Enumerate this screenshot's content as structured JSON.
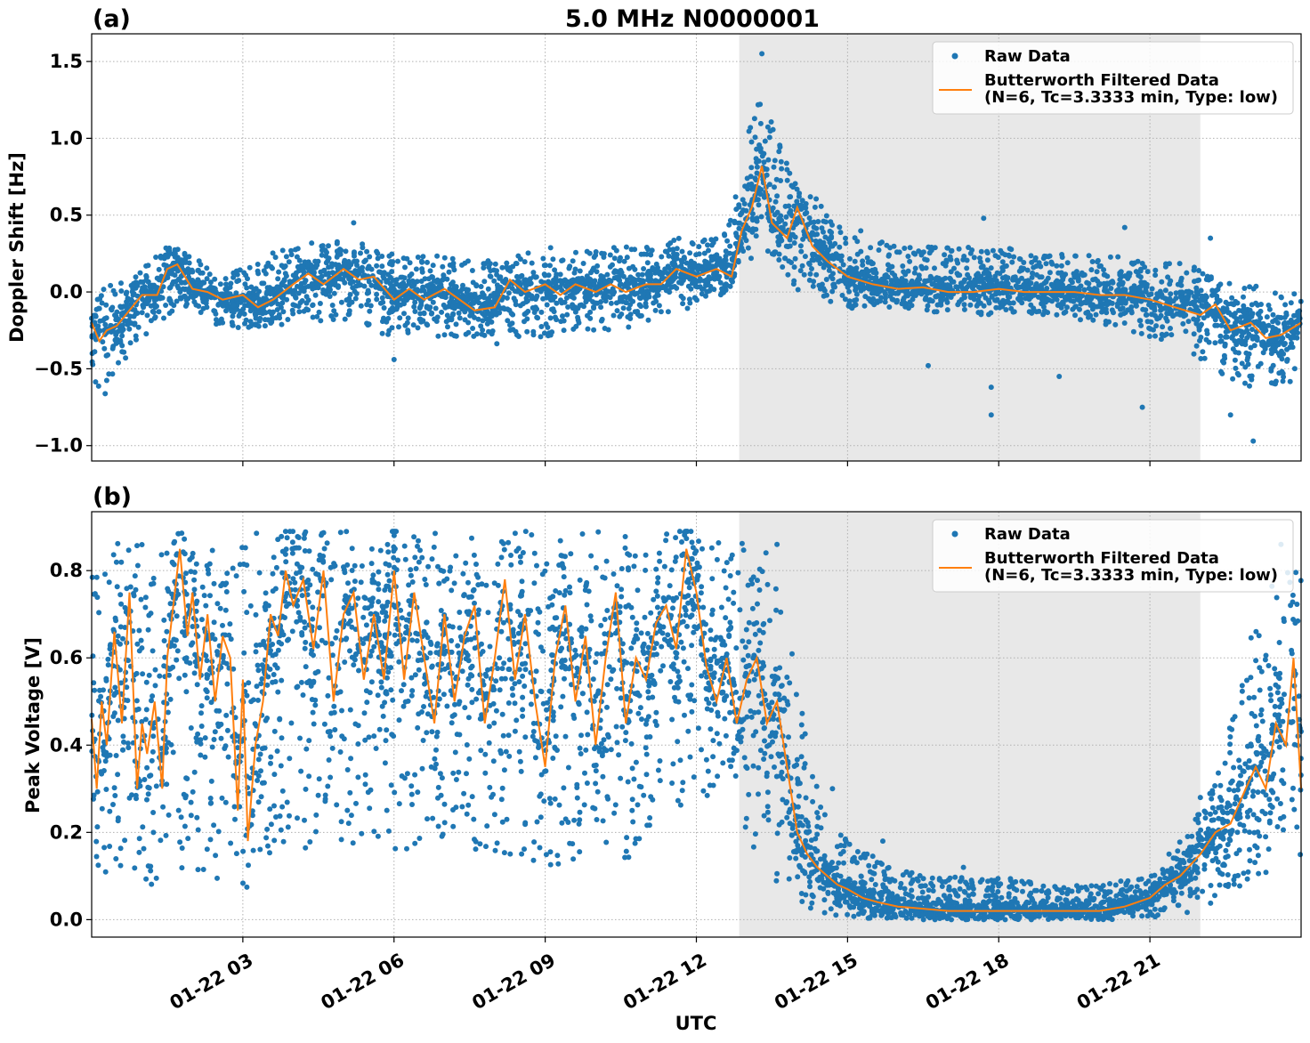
{
  "chart_data": [
    {
      "type": "scatter",
      "panel_label": "(a)",
      "title": "5.0 MHz N0000001",
      "ylabel": "Doppler Shift [Hz]",
      "xlabel": "",
      "x_unit": "UTC hour on 01-22",
      "xlim": [
        0,
        24
      ],
      "ylim": [
        -1.1,
        1.68
      ],
      "yticks": [
        1.5,
        1.0,
        0.5,
        0.0,
        -0.5,
        -1.0
      ],
      "ytick_labels": [
        "1.5",
        "1.0",
        "0.5",
        "0.0",
        "−0.5",
        "−1.0"
      ],
      "grid": true,
      "legend_position": "top-right",
      "shaded_interval": [
        12.85,
        22.0
      ],
      "series": [
        {
          "name": "Raw Data",
          "style": "points",
          "color": "#1f77b4",
          "envelope": {
            "x": [
              0,
              0.2,
              0.5,
              1,
              1.5,
              2,
              2.5,
              3,
              3.5,
              4,
              4.5,
              5,
              5.5,
              6,
              6.5,
              7,
              7.5,
              8,
              8.5,
              9,
              9.5,
              10,
              10.5,
              11,
              11.5,
              12,
              12.5,
              12.8,
              13,
              13.3,
              13.6,
              14,
              14.5,
              15,
              15.5,
              16,
              17,
              18,
              19,
              20,
              21,
              21.5,
              22,
              22.5,
              23,
              23.5,
              24
            ],
            "low": [
              -0.65,
              -0.75,
              -0.5,
              -0.3,
              -0.15,
              -0.1,
              -0.25,
              -0.25,
              -0.3,
              -0.15,
              -0.2,
              -0.2,
              -0.25,
              -0.3,
              -0.25,
              -0.3,
              -0.3,
              -0.35,
              -0.3,
              -0.3,
              -0.25,
              -0.25,
              -0.25,
              -0.2,
              -0.15,
              -0.1,
              -0.05,
              0.1,
              0.2,
              0.25,
              0.2,
              0.0,
              -0.05,
              -0.15,
              -0.1,
              -0.1,
              -0.15,
              -0.15,
              -0.15,
              -0.2,
              -0.3,
              -0.35,
              -0.45,
              -0.55,
              -0.65,
              -0.6,
              -0.6
            ],
            "high": [
              0.0,
              0.05,
              0.05,
              0.15,
              0.3,
              0.25,
              0.1,
              0.15,
              0.25,
              0.3,
              0.35,
              0.35,
              0.3,
              0.25,
              0.25,
              0.25,
              0.25,
              0.2,
              0.25,
              0.3,
              0.25,
              0.3,
              0.3,
              0.3,
              0.35,
              0.35,
              0.35,
              0.7,
              1.0,
              1.4,
              1.0,
              0.75,
              0.6,
              0.45,
              0.35,
              0.3,
              0.3,
              0.3,
              0.25,
              0.25,
              0.2,
              0.2,
              0.15,
              0.1,
              0.05,
              0.05,
              0.05
            ]
          },
          "outliers": [
            {
              "x": 13.3,
              "y": 1.55
            },
            {
              "x": 5.2,
              "y": 0.45
            },
            {
              "x": 17.7,
              "y": 0.48
            },
            {
              "x": 20.5,
              "y": 0.42
            },
            {
              "x": 22.2,
              "y": 0.35
            },
            {
              "x": 17.85,
              "y": -0.62
            },
            {
              "x": 17.85,
              "y": -0.8
            },
            {
              "x": 20.85,
              "y": -0.75
            },
            {
              "x": 19.2,
              "y": -0.55
            },
            {
              "x": 22.6,
              "y": -0.8
            },
            {
              "x": 23.05,
              "y": -0.97
            },
            {
              "x": 6.0,
              "y": -0.44
            },
            {
              "x": 16.6,
              "y": -0.48
            }
          ]
        },
        {
          "name": "Butterworth Filtered Data\n(N=6, Tc=3.3333 min, Type: low)",
          "style": "line",
          "color": "#ff7f0e",
          "x": [
            0,
            0.15,
            0.3,
            0.5,
            0.8,
            1.0,
            1.3,
            1.5,
            1.7,
            2.0,
            2.3,
            2.6,
            3.0,
            3.3,
            3.6,
            4.0,
            4.3,
            4.6,
            5.0,
            5.3,
            5.6,
            6.0,
            6.3,
            6.6,
            7.0,
            7.3,
            7.6,
            8.0,
            8.3,
            8.6,
            9.0,
            9.3,
            9.6,
            10.0,
            10.3,
            10.6,
            11.0,
            11.3,
            11.6,
            12.0,
            12.4,
            12.7,
            12.9,
            13.1,
            13.3,
            13.5,
            13.8,
            14.0,
            14.3,
            14.6,
            15.0,
            15.5,
            16.0,
            16.5,
            17.0,
            17.5,
            18.0,
            18.5,
            19.0,
            19.5,
            20.0,
            20.5,
            21.0,
            21.5,
            22.0,
            22.3,
            22.6,
            23.0,
            23.3,
            23.6,
            24.0
          ],
          "y": [
            -0.2,
            -0.32,
            -0.25,
            -0.22,
            -0.1,
            -0.02,
            -0.02,
            0.15,
            0.18,
            0.02,
            0.0,
            -0.05,
            -0.02,
            -0.1,
            -0.05,
            0.05,
            0.12,
            0.05,
            0.15,
            0.08,
            0.1,
            -0.05,
            0.02,
            -0.05,
            0.02,
            -0.05,
            -0.12,
            -0.1,
            0.08,
            0.0,
            0.05,
            -0.02,
            0.05,
            0.0,
            0.05,
            0.0,
            0.05,
            0.05,
            0.15,
            0.1,
            0.15,
            0.1,
            0.4,
            0.55,
            0.82,
            0.45,
            0.35,
            0.55,
            0.3,
            0.2,
            0.1,
            0.05,
            0.02,
            0.03,
            0.0,
            0.0,
            0.02,
            0.0,
            0.0,
            0.0,
            -0.02,
            -0.02,
            -0.05,
            -0.1,
            -0.15,
            -0.08,
            -0.25,
            -0.2,
            -0.3,
            -0.28,
            -0.2
          ]
        }
      ]
    },
    {
      "type": "scatter",
      "panel_label": "(b)",
      "title": "",
      "ylabel": "Peak Voltage [V]",
      "xlabel": "UTC",
      "x_unit": "UTC hour on 01-22",
      "xlim": [
        0,
        24
      ],
      "ylim": [
        -0.04,
        0.935
      ],
      "yticks": [
        0.8,
        0.6,
        0.4,
        0.2,
        0.0
      ],
      "ytick_labels": [
        "0.8",
        "0.6",
        "0.4",
        "0.2",
        "0.0"
      ],
      "xticks": [
        3,
        6,
        9,
        12,
        15,
        18,
        21
      ],
      "xtick_labels": [
        "01-22 03",
        "01-22 06",
        "01-22 09",
        "01-22 12",
        "01-22 15",
        "01-22 18",
        "01-22 21"
      ],
      "grid": true,
      "legend_position": "top-right",
      "shaded_interval": [
        12.85,
        22.0
      ],
      "series": [
        {
          "name": "Raw Data",
          "style": "points",
          "color": "#1f77b4",
          "envelope": {
            "x": [
              0,
              0.5,
              1,
              1.5,
              2,
              2.5,
              3,
              3.5,
              4,
              5,
              6,
              7,
              8,
              9,
              10,
              11,
              12,
              12.5,
              13,
              13.5,
              14,
              14.5,
              15,
              16,
              17,
              18,
              19,
              20,
              21,
              21.5,
              22,
              22.5,
              23,
              23.5,
              24
            ],
            "low": [
              0.08,
              0.1,
              0.06,
              0.1,
              0.1,
              0.08,
              0.06,
              0.15,
              0.15,
              0.18,
              0.15,
              0.18,
              0.15,
              0.1,
              0.12,
              0.15,
              0.3,
              0.25,
              0.18,
              0.1,
              0.03,
              0.01,
              0.005,
              0.0,
              0.0,
              0.0,
              0.0,
              0.0,
              0.0,
              0.01,
              0.02,
              0.05,
              0.08,
              0.1,
              0.12
            ],
            "high": [
              0.8,
              0.87,
              0.87,
              0.88,
              0.89,
              0.89,
              0.88,
              0.89,
              0.89,
              0.89,
              0.89,
              0.89,
              0.89,
              0.89,
              0.89,
              0.89,
              0.89,
              0.88,
              0.87,
              0.85,
              0.6,
              0.25,
              0.18,
              0.12,
              0.1,
              0.1,
              0.08,
              0.08,
              0.1,
              0.18,
              0.25,
              0.4,
              0.65,
              0.8,
              0.85
            ]
          },
          "outliers": [
            {
              "x": 13.6,
              "y": 0.86
            },
            {
              "x": 14.7,
              "y": 0.3
            },
            {
              "x": 15.7,
              "y": 0.18
            },
            {
              "x": 17.3,
              "y": 0.12
            },
            {
              "x": 23.6,
              "y": 0.86
            },
            {
              "x": 22.0,
              "y": 0.28
            }
          ]
        },
        {
          "name": "Butterworth Filtered Data\n(N=6, Tc=3.3333 min, Type: low)",
          "style": "line",
          "color": "#ff7f0e",
          "x": [
            0,
            0.1,
            0.2,
            0.3,
            0.45,
            0.6,
            0.75,
            0.9,
            1.0,
            1.1,
            1.25,
            1.4,
            1.5,
            1.6,
            1.75,
            1.9,
            2.0,
            2.15,
            2.3,
            2.45,
            2.6,
            2.75,
            2.9,
            3.0,
            3.1,
            3.25,
            3.4,
            3.55,
            3.7,
            3.85,
            4.0,
            4.2,
            4.4,
            4.6,
            4.8,
            5.0,
            5.2,
            5.4,
            5.6,
            5.8,
            6.0,
            6.2,
            6.4,
            6.6,
            6.8,
            7.0,
            7.2,
            7.4,
            7.6,
            7.8,
            8.0,
            8.2,
            8.4,
            8.6,
            8.8,
            9.0,
            9.2,
            9.4,
            9.6,
            9.8,
            10.0,
            10.2,
            10.4,
            10.6,
            10.8,
            11.0,
            11.2,
            11.4,
            11.6,
            11.8,
            12.0,
            12.2,
            12.4,
            12.6,
            12.8,
            13.0,
            13.2,
            13.4,
            13.6,
            13.8,
            14.0,
            14.2,
            14.4,
            14.6,
            14.8,
            15.0,
            15.3,
            15.6,
            16.0,
            16.5,
            17.0,
            17.5,
            18.0,
            18.5,
            19.0,
            19.5,
            20.0,
            20.5,
            21.0,
            21.3,
            21.6,
            22.0,
            22.3,
            22.6,
            22.9,
            23.1,
            23.3,
            23.5,
            23.7,
            23.85,
            24.0
          ],
          "y": [
            0.46,
            0.3,
            0.5,
            0.4,
            0.66,
            0.45,
            0.75,
            0.3,
            0.45,
            0.38,
            0.5,
            0.3,
            0.6,
            0.7,
            0.85,
            0.65,
            0.75,
            0.55,
            0.7,
            0.5,
            0.65,
            0.6,
            0.25,
            0.55,
            0.18,
            0.4,
            0.5,
            0.7,
            0.65,
            0.8,
            0.72,
            0.78,
            0.62,
            0.8,
            0.5,
            0.7,
            0.75,
            0.55,
            0.7,
            0.55,
            0.8,
            0.55,
            0.75,
            0.6,
            0.45,
            0.7,
            0.5,
            0.65,
            0.72,
            0.45,
            0.6,
            0.78,
            0.55,
            0.7,
            0.5,
            0.35,
            0.6,
            0.72,
            0.5,
            0.65,
            0.4,
            0.6,
            0.75,
            0.45,
            0.6,
            0.55,
            0.68,
            0.72,
            0.62,
            0.85,
            0.75,
            0.58,
            0.5,
            0.6,
            0.45,
            0.55,
            0.6,
            0.45,
            0.5,
            0.35,
            0.2,
            0.15,
            0.12,
            0.1,
            0.08,
            0.07,
            0.05,
            0.04,
            0.03,
            0.025,
            0.02,
            0.02,
            0.02,
            0.02,
            0.02,
            0.02,
            0.02,
            0.03,
            0.05,
            0.08,
            0.1,
            0.15,
            0.2,
            0.22,
            0.3,
            0.35,
            0.3,
            0.45,
            0.4,
            0.6,
            0.3
          ]
        }
      ]
    }
  ]
}
